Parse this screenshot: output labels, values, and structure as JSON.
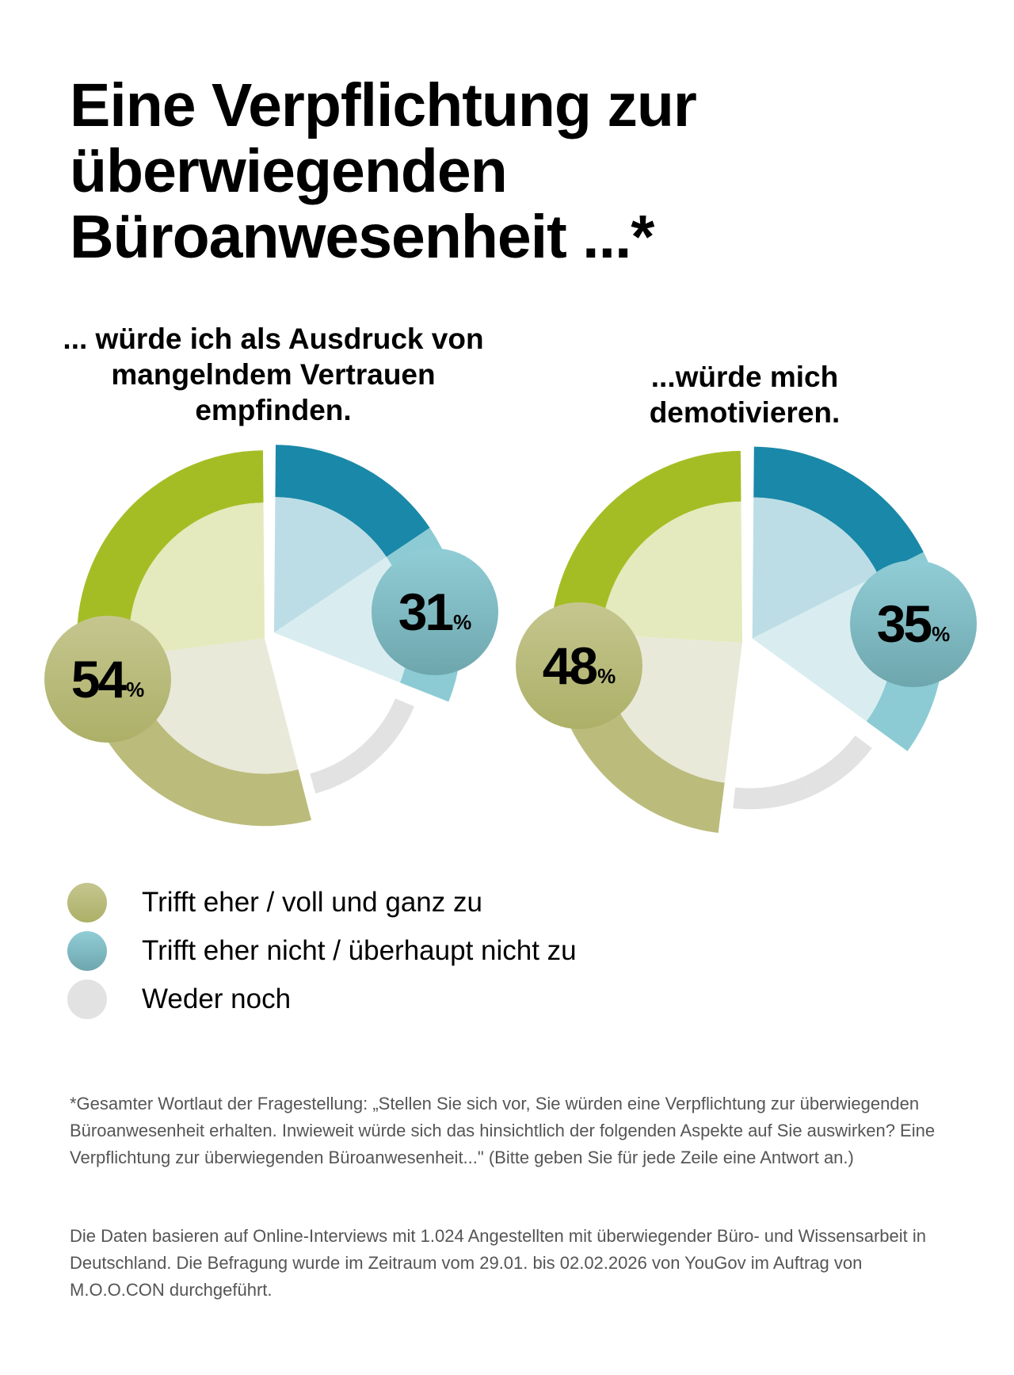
{
  "title": "Eine Verpflichtung zur überwiegenden Büroanwesenheit ...*",
  "title_lines": [
    "Eine Verpflichtung zur",
    "überwiegenden",
    "Büroanwesenheit ...*"
  ],
  "colors": {
    "agree_outer_top": "#a5bd24",
    "agree_outer_bottom": "#bbbc7b",
    "agree_inner_top": "#e4eabd",
    "agree_inner_bottom": "#e9e9d9",
    "disagree_outer_top": "#1a88a8",
    "disagree_outer_bottom": "#8ccbd3",
    "disagree_inner_top": "#bcdde5",
    "disagree_inner_bottom": "#d9edf0",
    "neither_outer": "#e2e2e2",
    "neither_inner": "#ffffff"
  },
  "chart_data": [
    {
      "type": "pie",
      "title_lines": [
        "... würde ich als Ausdruck von",
        "mangelndem Vertrauen",
        "empfinden."
      ],
      "categories": [
        "Trifft eher / voll und ganz zu",
        "Trifft eher nicht / überhaupt nicht zu",
        "Weder noch"
      ],
      "values": [
        54,
        31,
        15
      ],
      "labels": {
        "agree": "54",
        "disagree": "31"
      },
      "unit": "%"
    },
    {
      "type": "pie",
      "title_lines": [
        "...würde mich",
        "demotivieren."
      ],
      "categories": [
        "Trifft eher / voll und ganz zu",
        "Trifft eher nicht / überhaupt nicht zu",
        "Weder noch"
      ],
      "values": [
        48,
        35,
        17
      ],
      "labels": {
        "agree": "48",
        "disagree": "35"
      },
      "unit": "%"
    }
  ],
  "legend": [
    {
      "label": "Trifft eher / voll und ganz zu",
      "color": "#b8ba78"
    },
    {
      "label": "Trifft eher nicht / überhaupt nicht zu",
      "color": "#7fbcc5"
    },
    {
      "label": "Weder noch",
      "color": "#e2e2e2"
    }
  ],
  "footnotes": [
    "*Gesamter Wortlaut der Fragestellung: „Stellen Sie sich vor, Sie würden eine Verpflichtung zur überwiegenden Büroanwesenheit erhalten. Inwieweit würde sich das hinsichtlich der folgenden Aspekte auf Sie auswirken? Eine Verpflichtung zur überwiegenden Büroanwesenheit...\" (Bitte geben Sie für jede Zeile eine Antwort an.)",
    "Die Daten basieren auf Online-Interviews mit 1.024 Angestellten mit überwiegender Büro- und Wissensarbeit in Deutschland. Die Befragung wurde im Zeitraum vom 29.01. bis 02.02.2026 von YouGov im Auftrag von M.O.O.CON durchgeführt."
  ]
}
